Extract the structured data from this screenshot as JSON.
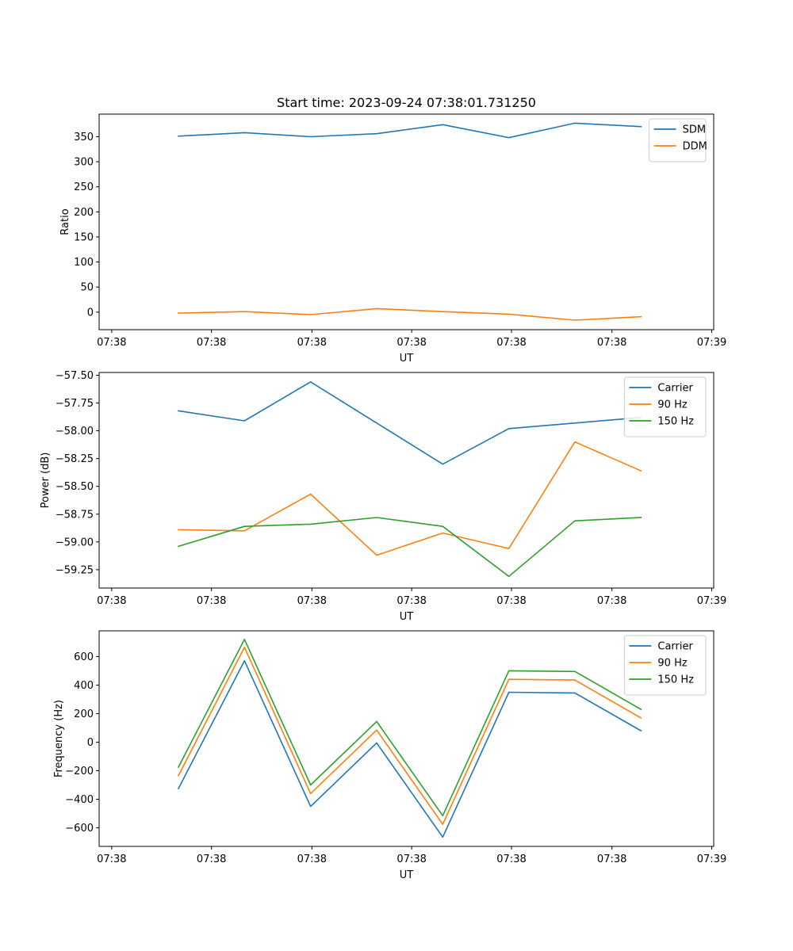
{
  "figure_title": "Start time: 2023-09-24 07:38:01.731250",
  "colors": {
    "c0": "#1f77b4",
    "c1": "#ff7f0e",
    "c2": "#2ca02c"
  },
  "chart_data": [
    {
      "type": "line",
      "title": "Start time: 2023-09-24 07:38:01.731250",
      "xlabel": "UT",
      "ylabel": "Ratio",
      "x": [
        1,
        2,
        3,
        4,
        5,
        6,
        7,
        8
      ],
      "xlim": [
        -0.2,
        9.1
      ],
      "xticks": [
        -0.01,
        1.5,
        3.02,
        4.53,
        6.04,
        7.56,
        9.07
      ],
      "xtick_labels": [
        "07:38",
        "07:38",
        "07:38",
        "07:38",
        "07:38",
        "07:38",
        "07:39"
      ],
      "ylim": [
        -35,
        395
      ],
      "yticks": [
        0,
        50,
        100,
        150,
        200,
        250,
        300,
        350
      ],
      "ytick_labels": [
        "0",
        "50",
        "100",
        "150",
        "200",
        "250",
        "300",
        "350"
      ],
      "legend": "upper right",
      "series": [
        {
          "name": "SDM",
          "color": "#1f77b4",
          "values": [
            351,
            358,
            350,
            356,
            374,
            348,
            377,
            370
          ]
        },
        {
          "name": "DDM",
          "color": "#ff7f0e",
          "values": [
            -2,
            1,
            -5,
            7,
            1,
            -4,
            -16,
            -9
          ]
        }
      ]
    },
    {
      "type": "line",
      "xlabel": "UT",
      "ylabel": "Power (dB)",
      "x": [
        1,
        2,
        3,
        4,
        5,
        6,
        7,
        8
      ],
      "xlim": [
        -0.2,
        9.1
      ],
      "xticks": [
        -0.01,
        1.5,
        3.02,
        4.53,
        6.04,
        7.56,
        9.07
      ],
      "xtick_labels": [
        "07:38",
        "07:38",
        "07:38",
        "07:38",
        "07:38",
        "07:38",
        "07:39"
      ],
      "ylim": [
        -59.415,
        -57.475
      ],
      "yticks": [
        -59.25,
        -59.0,
        -58.75,
        -58.5,
        -58.25,
        -58.0,
        -57.75,
        -57.5
      ],
      "ytick_labels": [
        "−59.25",
        "−59.00",
        "−58.75",
        "−58.50",
        "−58.25",
        "−58.00",
        "−57.75",
        "−57.50"
      ],
      "legend": "upper right",
      "series": [
        {
          "name": "Carrier",
          "color": "#1f77b4",
          "values": [
            -57.82,
            -57.91,
            -57.56,
            -57.93,
            -58.3,
            -57.98,
            -57.93,
            -57.88
          ]
        },
        {
          "name": "90 Hz",
          "color": "#ff7f0e",
          "values": [
            -58.89,
            -58.9,
            -58.57,
            -59.12,
            -58.92,
            -59.06,
            -58.1,
            -58.36
          ]
        },
        {
          "name": "150 Hz",
          "color": "#2ca02c",
          "values": [
            -59.04,
            -58.86,
            -58.84,
            -58.78,
            -58.86,
            -59.31,
            -58.81,
            -58.78
          ]
        }
      ]
    },
    {
      "type": "line",
      "xlabel": "UT",
      "ylabel": "Frequency (Hz)",
      "x": [
        1,
        2,
        3,
        4,
        5,
        6,
        7,
        8
      ],
      "xlim": [
        -0.2,
        9.1
      ],
      "xticks": [
        -0.01,
        1.5,
        3.02,
        4.53,
        6.04,
        7.56,
        9.07
      ],
      "xtick_labels": [
        "07:38",
        "07:38",
        "07:38",
        "07:38",
        "07:38",
        "07:38",
        "07:39"
      ],
      "ylim": [
        -730,
        780
      ],
      "yticks": [
        -600,
        -400,
        -200,
        0,
        200,
        400,
        600
      ],
      "ytick_labels": [
        "−600",
        "−400",
        "−200",
        "0",
        "200",
        "400",
        "600"
      ],
      "legend": "upper right",
      "series": [
        {
          "name": "Carrier",
          "color": "#1f77b4",
          "values": [
            -325,
            570,
            -450,
            -5,
            -665,
            350,
            345,
            80
          ]
        },
        {
          "name": "90 Hz",
          "color": "#ff7f0e",
          "values": [
            -235,
            665,
            -360,
            85,
            -575,
            440,
            435,
            170
          ]
        },
        {
          "name": "150 Hz",
          "color": "#2ca02c",
          "values": [
            -175,
            720,
            -300,
            145,
            -515,
            500,
            495,
            230
          ]
        }
      ]
    }
  ]
}
